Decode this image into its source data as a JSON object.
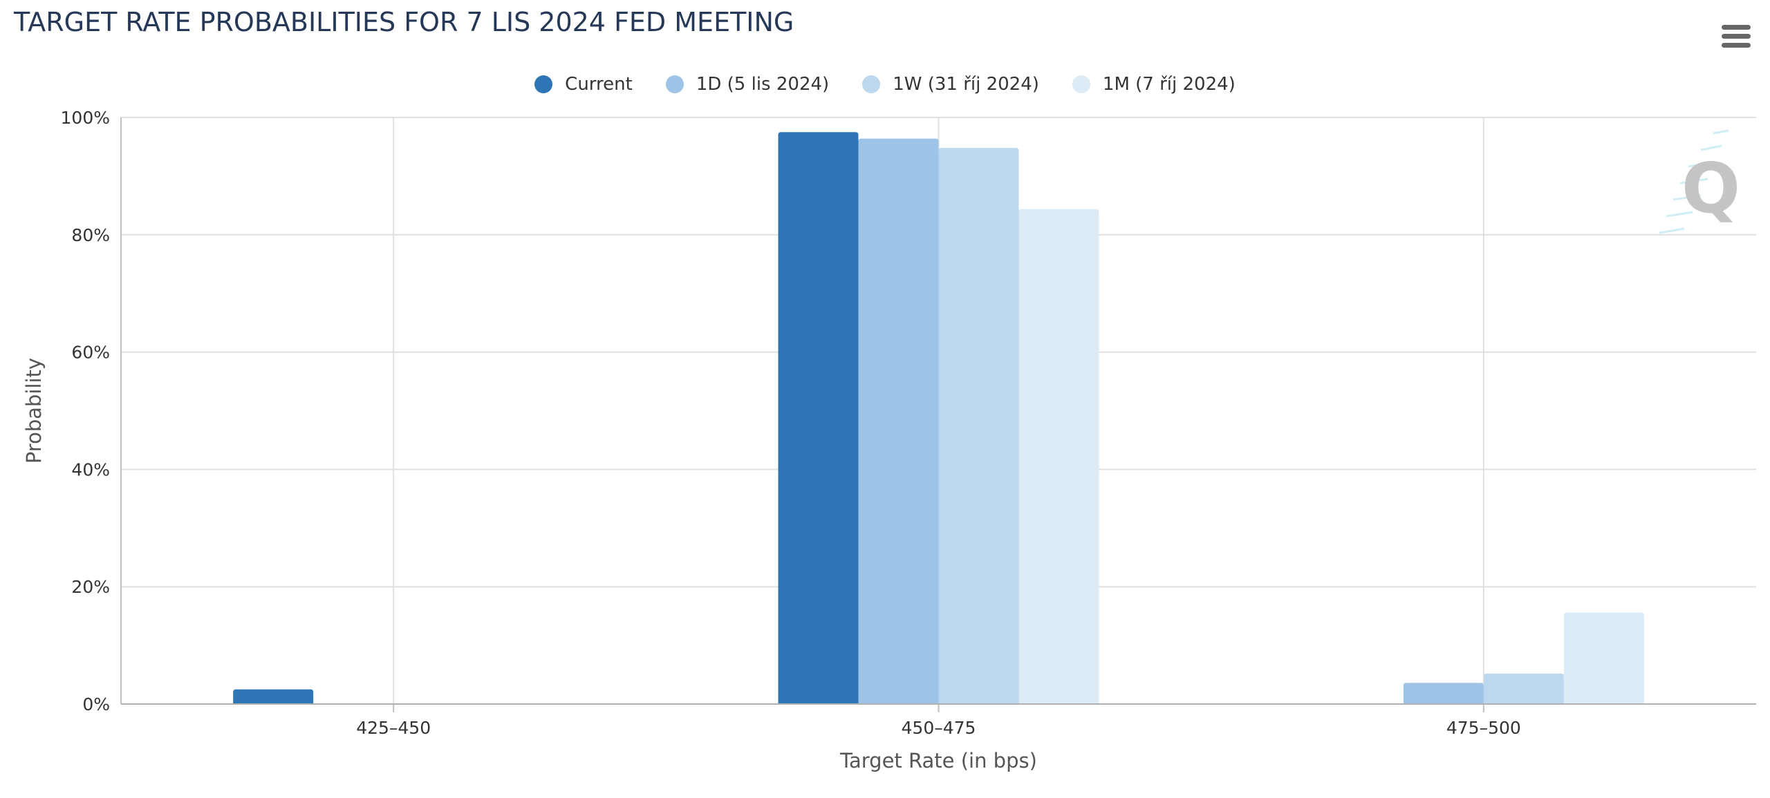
{
  "title": "TARGET RATE PROBABILITIES FOR 7 LIS 2024 FED MEETING",
  "menu_icon": "hamburger-menu-icon",
  "watermark_icon": "q-logo-watermark-icon",
  "colors": {
    "current": "#2e75b6",
    "d1": "#9dc3e6",
    "w1": "#bdd7ee",
    "m1": "#ddebf7",
    "title": "#253858"
  },
  "chart_data": {
    "type": "bar",
    "title": "TARGET RATE PROBABILITIES FOR 7 LIS 2024 FED MEETING",
    "xlabel": "Target Rate (in bps)",
    "ylabel": "Probability",
    "ylim": [
      0,
      100
    ],
    "yticks": [
      "0%",
      "20%",
      "40%",
      "60%",
      "80%",
      "100%"
    ],
    "categories": [
      "425–450",
      "450–475",
      "475–500"
    ],
    "legend_position": "top-center",
    "grid": true,
    "series": [
      {
        "name": "Current",
        "color": "#2e75b6",
        "values": [
          2.5,
          97.5,
          0
        ]
      },
      {
        "name": "1D (5 lis 2024)",
        "color": "#9dc3e6",
        "values": [
          0,
          96.4,
          3.6
        ]
      },
      {
        "name": "1W (31 říj 2024)",
        "color": "#bdd7ee",
        "values": [
          0,
          94.8,
          5.2
        ]
      },
      {
        "name": "1M (7 říj 2024)",
        "color": "#ddebf7",
        "values": [
          0,
          84.4,
          15.6
        ]
      }
    ]
  }
}
